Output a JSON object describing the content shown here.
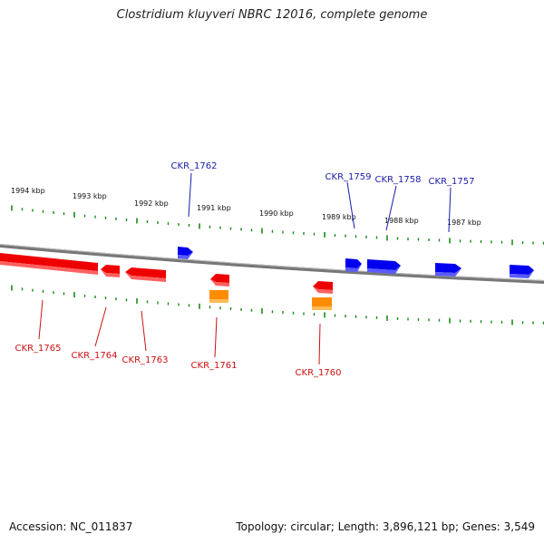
{
  "title": "Clostridium kluyveri NBRC 12016, complete genome",
  "footer": {
    "accession": "Accession: NC_011837",
    "summary": "Topology: circular; Length: 3,896,121 bp; Genes: 3,549"
  },
  "colors": {
    "forward_gene": "#0000ee",
    "reverse_gene": "#ee0000",
    "rna_gene": "#ff8c00",
    "tick": "#1a8a1a",
    "backbone": "#808080",
    "forward_label": "#1a1aaa",
    "reverse_label": "#cc1111"
  },
  "scale_labels": [
    "1994 kbp",
    "1993 kbp",
    "1992 kbp",
    "1991 kbp",
    "1990 kbp",
    "1989 kbp",
    "1988 kbp",
    "1987 kbp"
  ],
  "genes": {
    "forward": [
      "CKR_1762",
      "CKR_1759",
      "CKR_1758",
      "CKR_1757"
    ],
    "reverse": [
      "CKR_1765",
      "CKR_1764",
      "CKR_1763",
      "CKR_1761",
      "CKR_1760"
    ]
  }
}
